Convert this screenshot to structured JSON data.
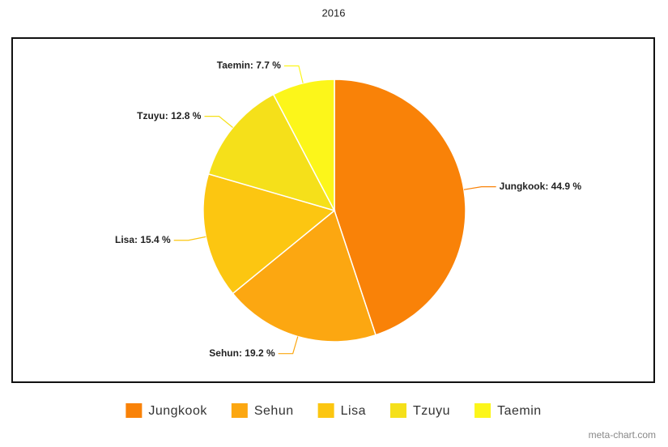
{
  "chart_data": {
    "type": "pie",
    "title": "2016",
    "categories": [
      "Jungkook",
      "Sehun",
      "Lisa",
      "Tzuyu",
      "Taemin"
    ],
    "values": [
      44.9,
      19.2,
      15.4,
      12.8,
      7.7
    ],
    "value_labels": [
      "Jungkook: 44.9 %",
      "Sehun: 19.2 %",
      "Lisa: 15.4 %",
      "Tzuyu: 12.8 %",
      "Taemin: 7.7 %"
    ],
    "colors": [
      "#f98208",
      "#fca711",
      "#fcc611",
      "#f5e01a",
      "#fcf61a"
    ],
    "legend": "bottom",
    "source": "meta-chart.com"
  }
}
